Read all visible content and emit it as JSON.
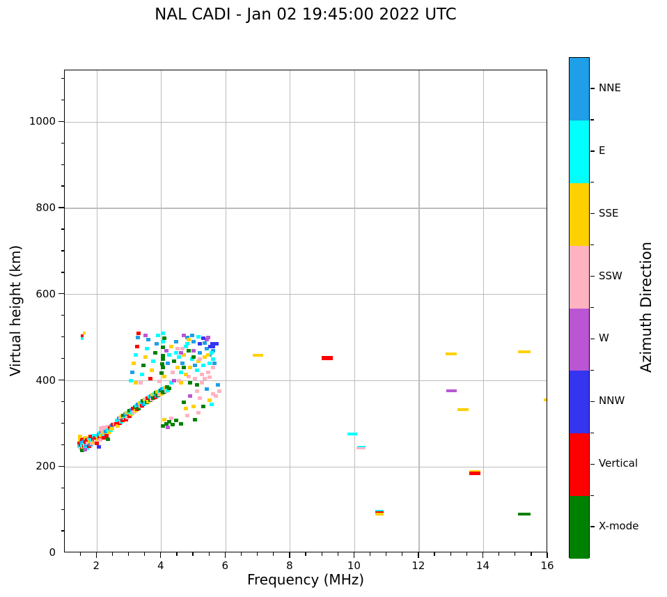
{
  "title": "NAL CADI - Jan 02 19:45:00 2022 UTC",
  "colorbar": {
    "label": "Azimuth Direction",
    "entries_top_to_bottom": [
      {
        "label": "NNE",
        "color": "#1e9fe8"
      },
      {
        "label": "E",
        "color": "#00ffff"
      },
      {
        "label": "SSE",
        "color": "#ffd000"
      },
      {
        "label": "SSW",
        "color": "#ffb3c1"
      },
      {
        "label": "W",
        "color": "#ba55d3"
      },
      {
        "label": "NNW",
        "color": "#3535ef"
      },
      {
        "label": "Vertical",
        "color": "#fe0000"
      },
      {
        "label": "X-mode",
        "color": "#008000"
      }
    ]
  },
  "chart_data": {
    "type": "scatter",
    "title": "NAL CADI - Jan 02 19:45:00 2022 UTC",
    "xlabel": "Frequency (MHz)",
    "ylabel": "Virtual height (km)",
    "legend_label": "Azimuth Direction",
    "xlim": [
      1,
      16
    ],
    "ylim": [
      0,
      1120
    ],
    "x_major_ticks": [
      2,
      4,
      6,
      8,
      10,
      12,
      14,
      16
    ],
    "x_minor_step": 0.5,
    "y_major_ticks": [
      0,
      200,
      400,
      600,
      800,
      1000
    ],
    "y_minor_step": 50,
    "grid": "major",
    "grid_color": "#bcbcbc",
    "categories": {
      "NNE": "#1e9fe8",
      "E": "#00ffff",
      "SSE": "#ffd000",
      "SSW": "#ffb3c1",
      "W": "#ba55d3",
      "NNW": "#3535ef",
      "Vertical": "#fe0000",
      "X-mode": "#008000"
    },
    "points": [
      [
        1.45,
        255,
        "Vertical"
      ],
      [
        1.45,
        248,
        "E"
      ],
      [
        1.48,
        262,
        "SSE"
      ],
      [
        1.5,
        244,
        "SSW"
      ],
      [
        1.5,
        252,
        "Vertical"
      ],
      [
        1.52,
        258,
        "NNE"
      ],
      [
        1.53,
        247,
        "Vertical"
      ],
      [
        1.55,
        250,
        "E"
      ],
      [
        1.55,
        264,
        "Vertical"
      ],
      [
        1.57,
        242,
        "SSE"
      ],
      [
        1.58,
        256,
        "E"
      ],
      [
        1.6,
        248,
        "Vertical"
      ],
      [
        1.6,
        260,
        "NNE"
      ],
      [
        1.62,
        252,
        "SSW"
      ],
      [
        1.63,
        245,
        "E"
      ],
      [
        1.65,
        258,
        "Vertical"
      ],
      [
        1.65,
        268,
        "SSE"
      ],
      [
        1.68,
        250,
        "NNE"
      ],
      [
        1.7,
        262,
        "Vertical"
      ],
      [
        1.7,
        243,
        "E"
      ],
      [
        1.72,
        255,
        "SSW"
      ],
      [
        1.75,
        248,
        "Vertical"
      ],
      [
        1.75,
        266,
        "E"
      ],
      [
        1.78,
        258,
        "SSE"
      ],
      [
        1.8,
        252,
        "NNE"
      ],
      [
        1.8,
        270,
        "Vertical"
      ],
      [
        1.83,
        262,
        "E"
      ],
      [
        1.85,
        255,
        "SSW"
      ],
      [
        1.88,
        265,
        "Vertical"
      ],
      [
        1.9,
        258,
        "SSE"
      ],
      [
        1.9,
        272,
        "E"
      ],
      [
        1.93,
        262,
        "NNE"
      ],
      [
        1.95,
        268,
        "Vertical"
      ],
      [
        1.98,
        260,
        "SSW"
      ],
      [
        2.0,
        272,
        "E"
      ],
      [
        2.0,
        255,
        "Vertical"
      ],
      [
        2.03,
        265,
        "SSE"
      ],
      [
        2.05,
        275,
        "NNE"
      ],
      [
        2.08,
        268,
        "Vertical"
      ],
      [
        2.1,
        278,
        "E"
      ],
      [
        2.1,
        262,
        "SSW"
      ],
      [
        2.13,
        272,
        "SSE"
      ],
      [
        2.15,
        282,
        "Vertical"
      ],
      [
        2.15,
        288,
        "SSW",
        9,
        7
      ],
      [
        2.18,
        275,
        "E"
      ],
      [
        2.2,
        285,
        "SSW",
        10,
        8
      ],
      [
        2.2,
        268,
        "Vertical"
      ],
      [
        2.23,
        278,
        "SSE"
      ],
      [
        2.25,
        290,
        "SSW",
        10,
        8
      ],
      [
        2.28,
        282,
        "NNE"
      ],
      [
        2.3,
        290,
        "SSW"
      ],
      [
        2.3,
        272,
        "Vertical"
      ],
      [
        2.33,
        285,
        "E"
      ],
      [
        2.35,
        293,
        "SSW"
      ],
      [
        2.38,
        280,
        "SSE"
      ],
      [
        2.4,
        290,
        "Vertical"
      ],
      [
        2.43,
        285,
        "E"
      ],
      [
        2.45,
        295,
        "NNE"
      ],
      [
        2.48,
        288,
        "SSE"
      ],
      [
        2.5,
        298,
        "Vertical"
      ],
      [
        2.55,
        300,
        "SSW"
      ],
      [
        1.47,
        270,
        "SSE"
      ],
      [
        1.55,
        238,
        "X-mode"
      ],
      [
        2.35,
        265,
        "X-mode"
      ],
      [
        2.05,
        246,
        "NNW"
      ],
      [
        1.62,
        240,
        "W"
      ],
      [
        2.6,
        300,
        "Vertical"
      ],
      [
        2.63,
        308,
        "E"
      ],
      [
        2.65,
        295,
        "SSE"
      ],
      [
        2.68,
        312,
        "NNE"
      ],
      [
        2.7,
        302,
        "Vertical"
      ],
      [
        2.72,
        315,
        "SSW"
      ],
      [
        2.75,
        305,
        "E"
      ],
      [
        2.78,
        318,
        "SSE"
      ],
      [
        2.8,
        308,
        "Vertical"
      ],
      [
        2.82,
        320,
        "X-mode"
      ],
      [
        2.85,
        312,
        "E"
      ],
      [
        2.88,
        322,
        "NNE"
      ],
      [
        2.9,
        310,
        "Vertical"
      ],
      [
        2.93,
        325,
        "SSE"
      ],
      [
        2.95,
        315,
        "SSW"
      ],
      [
        2.98,
        328,
        "E"
      ],
      [
        3.0,
        318,
        "Vertical"
      ],
      [
        3.02,
        330,
        "X-mode"
      ],
      [
        3.05,
        322,
        "SSE"
      ],
      [
        3.08,
        332,
        "NNE"
      ],
      [
        3.1,
        325,
        "E"
      ],
      [
        3.12,
        335,
        "Vertical"
      ],
      [
        3.15,
        328,
        "SSW"
      ],
      [
        3.18,
        338,
        "X-mode"
      ],
      [
        3.2,
        330,
        "SSE"
      ],
      [
        3.22,
        342,
        "E"
      ],
      [
        3.25,
        333,
        "Vertical"
      ],
      [
        3.28,
        345,
        "NNE"
      ],
      [
        3.3,
        336,
        "X-mode"
      ],
      [
        3.33,
        348,
        "SSE"
      ],
      [
        3.35,
        340,
        "SSW"
      ],
      [
        3.38,
        350,
        "E"
      ],
      [
        3.4,
        342,
        "Vertical"
      ],
      [
        3.43,
        353,
        "X-mode"
      ],
      [
        3.45,
        345,
        "NNE"
      ],
      [
        3.48,
        356,
        "SSE"
      ],
      [
        3.5,
        348,
        "E"
      ],
      [
        3.53,
        358,
        "SSW"
      ],
      [
        3.55,
        350,
        "X-mode"
      ],
      [
        3.58,
        360,
        "Vertical"
      ],
      [
        3.6,
        352,
        "SSE"
      ],
      [
        3.63,
        363,
        "E"
      ],
      [
        3.65,
        355,
        "X-mode"
      ],
      [
        3.68,
        365,
        "NNE"
      ],
      [
        3.7,
        357,
        "SSW"
      ],
      [
        3.73,
        368,
        "SSE"
      ],
      [
        3.75,
        360,
        "X-mode"
      ],
      [
        3.78,
        370,
        "E"
      ],
      [
        3.8,
        362,
        "Vertical"
      ],
      [
        3.83,
        372,
        "X-mode"
      ],
      [
        3.85,
        364,
        "NNE"
      ],
      [
        3.88,
        374,
        "SSE"
      ],
      [
        3.9,
        366,
        "X-mode"
      ],
      [
        3.93,
        376,
        "E"
      ],
      [
        3.95,
        368,
        "SSW"
      ],
      [
        3.98,
        378,
        "X-mode"
      ],
      [
        4.0,
        370,
        "SSE"
      ],
      [
        4.03,
        380,
        "NNE"
      ],
      [
        4.05,
        372,
        "X-mode"
      ],
      [
        4.08,
        382,
        "E"
      ],
      [
        4.1,
        374,
        "X-mode"
      ],
      [
        4.13,
        384,
        "SSE"
      ],
      [
        4.15,
        376,
        "SSW"
      ],
      [
        4.18,
        386,
        "X-mode"
      ],
      [
        4.2,
        378,
        "E"
      ],
      [
        4.25,
        382,
        "X-mode"
      ],
      [
        4.05,
        295,
        "X-mode"
      ],
      [
        4.15,
        300,
        "X-mode"
      ],
      [
        4.25,
        305,
        "X-mode"
      ],
      [
        4.35,
        298,
        "X-mode"
      ],
      [
        4.1,
        310,
        "SSE"
      ],
      [
        4.3,
        312,
        "SSW"
      ],
      [
        4.45,
        308,
        "X-mode"
      ],
      [
        4.2,
        292,
        "W"
      ],
      [
        3.05,
        400,
        "E"
      ],
      [
        3.1,
        420,
        "NNE"
      ],
      [
        3.15,
        440,
        "SSE"
      ],
      [
        3.2,
        460,
        "E"
      ],
      [
        3.25,
        480,
        "Vertical"
      ],
      [
        3.28,
        500,
        "NNE"
      ],
      [
        3.35,
        395,
        "SSW"
      ],
      [
        3.4,
        415,
        "E"
      ],
      [
        3.45,
        435,
        "X-mode"
      ],
      [
        3.5,
        455,
        "SSE"
      ],
      [
        3.55,
        475,
        "E"
      ],
      [
        3.6,
        495,
        "NNE"
      ],
      [
        3.65,
        405,
        "Vertical"
      ],
      [
        3.7,
        425,
        "SSE"
      ],
      [
        3.75,
        445,
        "E"
      ],
      [
        3.8,
        465,
        "X-mode"
      ],
      [
        3.85,
        485,
        "NNE"
      ],
      [
        3.9,
        505,
        "E"
      ],
      [
        3.95,
        398,
        "SSW"
      ],
      [
        4.0,
        418,
        "X-mode"
      ],
      [
        4.02,
        438,
        "X-mode"
      ],
      [
        4.05,
        458,
        "X-mode"
      ],
      [
        4.05,
        478,
        "X-mode"
      ],
      [
        4.08,
        498,
        "X-mode"
      ],
      [
        4.05,
        430,
        "X-mode"
      ],
      [
        4.05,
        450,
        "X-mode"
      ],
      [
        4.05,
        490,
        "E"
      ],
      [
        4.1,
        410,
        "SSE"
      ],
      [
        4.15,
        470,
        "W"
      ],
      [
        4.2,
        440,
        "NNE"
      ],
      [
        4.25,
        460,
        "E"
      ],
      [
        4.3,
        480,
        "SSE"
      ],
      [
        4.35,
        420,
        "SSW"
      ],
      [
        4.4,
        445,
        "X-mode"
      ],
      [
        4.45,
        465,
        "E"
      ],
      [
        4.05,
        510,
        "E"
      ],
      [
        3.3,
        510,
        "Vertical"
      ],
      [
        3.5,
        505,
        "W"
      ],
      [
        3.2,
        395,
        "SSE"
      ],
      [
        4.3,
        395,
        "E"
      ],
      [
        4.4,
        400,
        "W"
      ],
      [
        4.45,
        490,
        "NNE"
      ],
      [
        4.5,
        475,
        "SSW"
      ],
      [
        4.5,
        430,
        "SSE"
      ],
      [
        4.55,
        400,
        "SSW"
      ],
      [
        4.6,
        420,
        "E"
      ],
      [
        4.65,
        440,
        "NNE"
      ],
      [
        4.7,
        460,
        "SSE"
      ],
      [
        4.75,
        480,
        "E"
      ],
      [
        4.8,
        500,
        "NNE"
      ],
      [
        4.85,
        410,
        "SSW"
      ],
      [
        4.9,
        430,
        "SSE"
      ],
      [
        4.95,
        450,
        "E"
      ],
      [
        5.0,
        470,
        "W"
      ],
      [
        5.0,
        490,
        "NNE"
      ],
      [
        5.05,
        405,
        "SSW"
      ],
      [
        5.1,
        425,
        "E"
      ],
      [
        5.15,
        445,
        "SSE"
      ],
      [
        5.2,
        465,
        "NNE"
      ],
      [
        5.2,
        485,
        "NNW"
      ],
      [
        5.25,
        415,
        "SSW"
      ],
      [
        5.3,
        435,
        "E"
      ],
      [
        5.35,
        455,
        "SSE"
      ],
      [
        5.4,
        475,
        "NNE"
      ],
      [
        5.4,
        495,
        "W"
      ],
      [
        5.45,
        420,
        "SSW"
      ],
      [
        5.5,
        440,
        "E"
      ],
      [
        5.5,
        460,
        "NNE"
      ],
      [
        5.55,
        480,
        "NNW",
        10,
        5
      ],
      [
        5.6,
        450,
        "E"
      ],
      [
        5.6,
        470,
        "NNE"
      ],
      [
        5.65,
        485,
        "NNW",
        12,
        5
      ],
      [
        5.45,
        500,
        "W"
      ],
      [
        5.3,
        498,
        "NNW"
      ],
      [
        5.15,
        502,
        "E"
      ],
      [
        5.0,
        455,
        "X-mode"
      ],
      [
        4.85,
        470,
        "X-mode"
      ],
      [
        4.7,
        430,
        "X-mode"
      ],
      [
        4.9,
        395,
        "X-mode"
      ],
      [
        5.1,
        390,
        "X-mode"
      ],
      [
        5.25,
        395,
        "SSW"
      ],
      [
        5.35,
        405,
        "SSW"
      ],
      [
        5.5,
        408,
        "SSW"
      ],
      [
        4.6,
        395,
        "SSE"
      ],
      [
        4.75,
        415,
        "SSE"
      ],
      [
        5.05,
        435,
        "NNE"
      ],
      [
        5.45,
        460,
        "SSE"
      ],
      [
        5.55,
        465,
        "E"
      ],
      [
        4.65,
        475,
        "SSW"
      ],
      [
        4.8,
        485,
        "E"
      ],
      [
        4.95,
        505,
        "NNE"
      ],
      [
        5.35,
        488,
        "NNE"
      ],
      [
        5.2,
        450,
        "SSW"
      ],
      [
        4.55,
        455,
        "E"
      ],
      [
        4.6,
        465,
        "W"
      ],
      [
        5.6,
        430,
        "SSW"
      ],
      [
        5.65,
        440,
        "NNE"
      ],
      [
        4.7,
        505,
        "W"
      ],
      [
        4.85,
        495,
        "SSE"
      ],
      [
        4.6,
        300,
        "X-mode"
      ],
      [
        4.8,
        320,
        "SSW"
      ],
      [
        5.0,
        340,
        "SSE"
      ],
      [
        5.2,
        360,
        "SSW"
      ],
      [
        5.4,
        380,
        "NNE"
      ],
      [
        5.6,
        370,
        "SSW"
      ],
      [
        4.7,
        350,
        "X-mode"
      ],
      [
        4.9,
        365,
        "W"
      ],
      [
        5.1,
        375,
        "SSW"
      ],
      [
        5.3,
        340,
        "X-mode"
      ],
      [
        5.5,
        355,
        "SSE"
      ],
      [
        5.7,
        365,
        "SSW"
      ],
      [
        4.75,
        335,
        "SSE"
      ],
      [
        5.05,
        310,
        "X-mode"
      ],
      [
        5.15,
        325,
        "SSW"
      ],
      [
        5.55,
        345,
        "E"
      ],
      [
        5.8,
        375,
        "SSW"
      ],
      [
        5.75,
        390,
        "NNE"
      ],
      [
        1.53,
        504,
        "Vertical",
        4,
        4
      ],
      [
        1.6,
        510,
        "SSE",
        4,
        4
      ],
      [
        1.54,
        498,
        "E",
        4,
        4
      ],
      [
        7.0,
        459,
        "SSE",
        15,
        4
      ],
      [
        9.15,
        452,
        "Vertical",
        16,
        6
      ],
      [
        9.93,
        277,
        "E",
        14,
        4
      ],
      [
        10.2,
        247,
        "E",
        12,
        3
      ],
      [
        10.2,
        244,
        "SSW",
        13,
        3
      ],
      [
        10.78,
        97,
        "E",
        12,
        4
      ],
      [
        10.78,
        94,
        "Vertical",
        12,
        4
      ],
      [
        10.78,
        90,
        "SSE",
        12,
        4
      ],
      [
        13.0,
        462,
        "SSE",
        16,
        4
      ],
      [
        13.0,
        376,
        "W",
        15,
        4
      ],
      [
        13.37,
        333,
        "SSE",
        16,
        4
      ],
      [
        13.73,
        189,
        "SSE",
        16,
        4
      ],
      [
        13.73,
        185,
        "Vertical",
        16,
        5
      ],
      [
        15.27,
        467,
        "SSE",
        18,
        4
      ],
      [
        15.27,
        91,
        "X-mode",
        18,
        4
      ],
      [
        15.95,
        355,
        "SSE",
        8,
        4
      ]
    ]
  }
}
